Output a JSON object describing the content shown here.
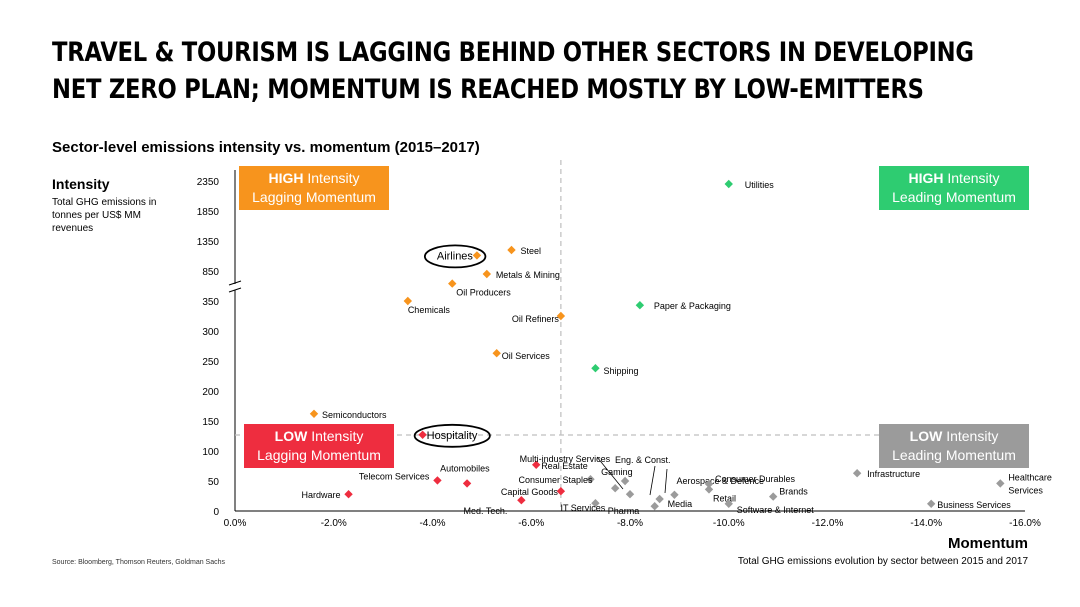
{
  "title_line1": "TRAVEL & TOURISM IS LAGGING BEHIND OTHER SECTORS IN DEVELOPING",
  "title_line2": "NET ZERO PLAN; MOMENTUM IS REACHED MOSTLY BY LOW-EMITTERS",
  "subtitle": "Sector-level emissions intensity vs. momentum (2015–2017)",
  "y_axis": {
    "title": "Intensity",
    "description": "Total GHG emissions in tonnes per US$ MM revenues"
  },
  "x_axis": {
    "title": "Momentum",
    "description": "Total GHG emissions evolution by sector between 2015 and 2017"
  },
  "source": "Source: Bloomberg, Thomson Reuters, Goldman Sachs",
  "quadrants": {
    "top_left": {
      "bold": "HIGH",
      "rest": " Intensity",
      "line2": "Lagging Momentum"
    },
    "top_right": {
      "bold": "HIGH",
      "rest": " Intensity",
      "line2": "Leading Momentum"
    },
    "bottom_left": {
      "bold": "LOW",
      "rest": " Intensity",
      "line2": "Lagging Momentum"
    },
    "bottom_right": {
      "bold": "LOW",
      "rest": " Intensity",
      "line2": "Leading Momentum"
    }
  },
  "colors": {
    "high_lagging": "#F7941D",
    "high_leading": "#2ECC71",
    "low_lagging": "#EE2D3F",
    "low_leading": "#9B9B9B"
  },
  "chart_data": {
    "type": "scatter",
    "title": "Sector-level emissions intensity vs. momentum (2015–2017)",
    "xlabel": "Momentum",
    "ylabel": "Intensity",
    "x_axis_reversed": true,
    "x_ticks": [
      "0.0%",
      "-2.0%",
      "-4.0%",
      "-6.0%",
      "-8.0%",
      "-10.0%",
      "-12.0%",
      "-14.0%",
      "-16.0%"
    ],
    "x_tick_values": [
      0,
      -2,
      -4,
      -6,
      -8,
      -10,
      -12,
      -14,
      -16
    ],
    "xlim": [
      0,
      -16
    ],
    "y_axis_broken": true,
    "y_ticks_lower": [
      "0",
      "50",
      "100",
      "150",
      "200",
      "250",
      "300",
      "350"
    ],
    "y_ticks_upper": [
      "850",
      "1350",
      "1850",
      "2350"
    ],
    "ylim_lower": [
      0,
      350
    ],
    "ylim_upper": [
      850,
      2350
    ],
    "x_threshold": -6.6,
    "y_threshold": 130,
    "highlighted": [
      "Airlines",
      "Hospitality"
    ],
    "points": [
      {
        "name": "Utilities",
        "x": -10.0,
        "y": 2300,
        "group": "high_leading"
      },
      {
        "name": "Paper & Packaging",
        "x": -8.2,
        "y": 343,
        "group": "high_leading"
      },
      {
        "name": "Shipping",
        "x": -7.3,
        "y": 238,
        "group": "high_leading"
      },
      {
        "name": "Steel",
        "x": -5.6,
        "y": 1200,
        "group": "high_lagging"
      },
      {
        "name": "Airlines",
        "x": -4.9,
        "y": 1110,
        "group": "high_lagging"
      },
      {
        "name": "Metals & Mining",
        "x": -5.1,
        "y": 800,
        "group": "high_lagging"
      },
      {
        "name": "Oil Producers",
        "x": -4.4,
        "y": 640,
        "group": "high_lagging"
      },
      {
        "name": "Chemicals",
        "x": -3.5,
        "y": 350,
        "group": "high_lagging"
      },
      {
        "name": "Oil Refiners",
        "x": -6.6,
        "y": 325,
        "group": "high_lagging"
      },
      {
        "name": "Oil Services",
        "x": -5.3,
        "y": 263,
        "group": "high_lagging"
      },
      {
        "name": "Semiconductors",
        "x": -1.6,
        "y": 162,
        "group": "high_lagging"
      },
      {
        "name": "Hospitality",
        "x": -3.8,
        "y": 127,
        "group": "low_lagging"
      },
      {
        "name": "Real Estate",
        "x": -6.1,
        "y": 77,
        "group": "low_lagging"
      },
      {
        "name": "Telecom Services",
        "x": -4.1,
        "y": 51,
        "group": "low_lagging"
      },
      {
        "name": "Automobiles",
        "x": -4.7,
        "y": 46,
        "group": "low_lagging"
      },
      {
        "name": "Capital Goods",
        "x": -6.6,
        "y": 33,
        "group": "low_lagging"
      },
      {
        "name": "Hardware",
        "x": -2.3,
        "y": 28,
        "group": "low_lagging"
      },
      {
        "name": "Med. Tech.",
        "x": -5.8,
        "y": 18,
        "group": "low_lagging"
      },
      {
        "name": "Multi-industry Services",
        "x": -7.7,
        "y": 38,
        "group": "low_leading"
      },
      {
        "name": "Consumer Staples",
        "x": -7.2,
        "y": 53,
        "group": "low_leading"
      },
      {
        "name": "IT Services",
        "x": -7.3,
        "y": 13,
        "group": "low_leading"
      },
      {
        "name": "Eng. & Const.",
        "x": -8.0,
        "y": 28,
        "group": "low_leading"
      },
      {
        "name": "Gaming",
        "x": -7.9,
        "y": 50,
        "group": "low_leading"
      },
      {
        "name": "Pharma",
        "x": -8.5,
        "y": 8,
        "group": "low_leading"
      },
      {
        "name": "Media",
        "x": -8.6,
        "y": 20,
        "group": "low_leading"
      },
      {
        "name": "Aerospace & Defence",
        "x": -8.9,
        "y": 27,
        "group": "low_leading"
      },
      {
        "name": "Consumer Durables",
        "x": -9.6,
        "y": 45,
        "group": "low_leading"
      },
      {
        "name": "Retail",
        "x": -9.6,
        "y": 36,
        "group": "low_leading"
      },
      {
        "name": "Software & Internet",
        "x": -10.0,
        "y": 12,
        "group": "low_leading"
      },
      {
        "name": "Brands",
        "x": -10.9,
        "y": 24,
        "group": "low_leading"
      },
      {
        "name": "Infrastructure",
        "x": -12.6,
        "y": 63,
        "group": "low_leading"
      },
      {
        "name": "Business Services",
        "x": -14.1,
        "y": 12,
        "group": "low_leading"
      },
      {
        "name": "Healthcare Services",
        "x": -15.5,
        "y": 46,
        "group": "low_leading"
      }
    ]
  }
}
